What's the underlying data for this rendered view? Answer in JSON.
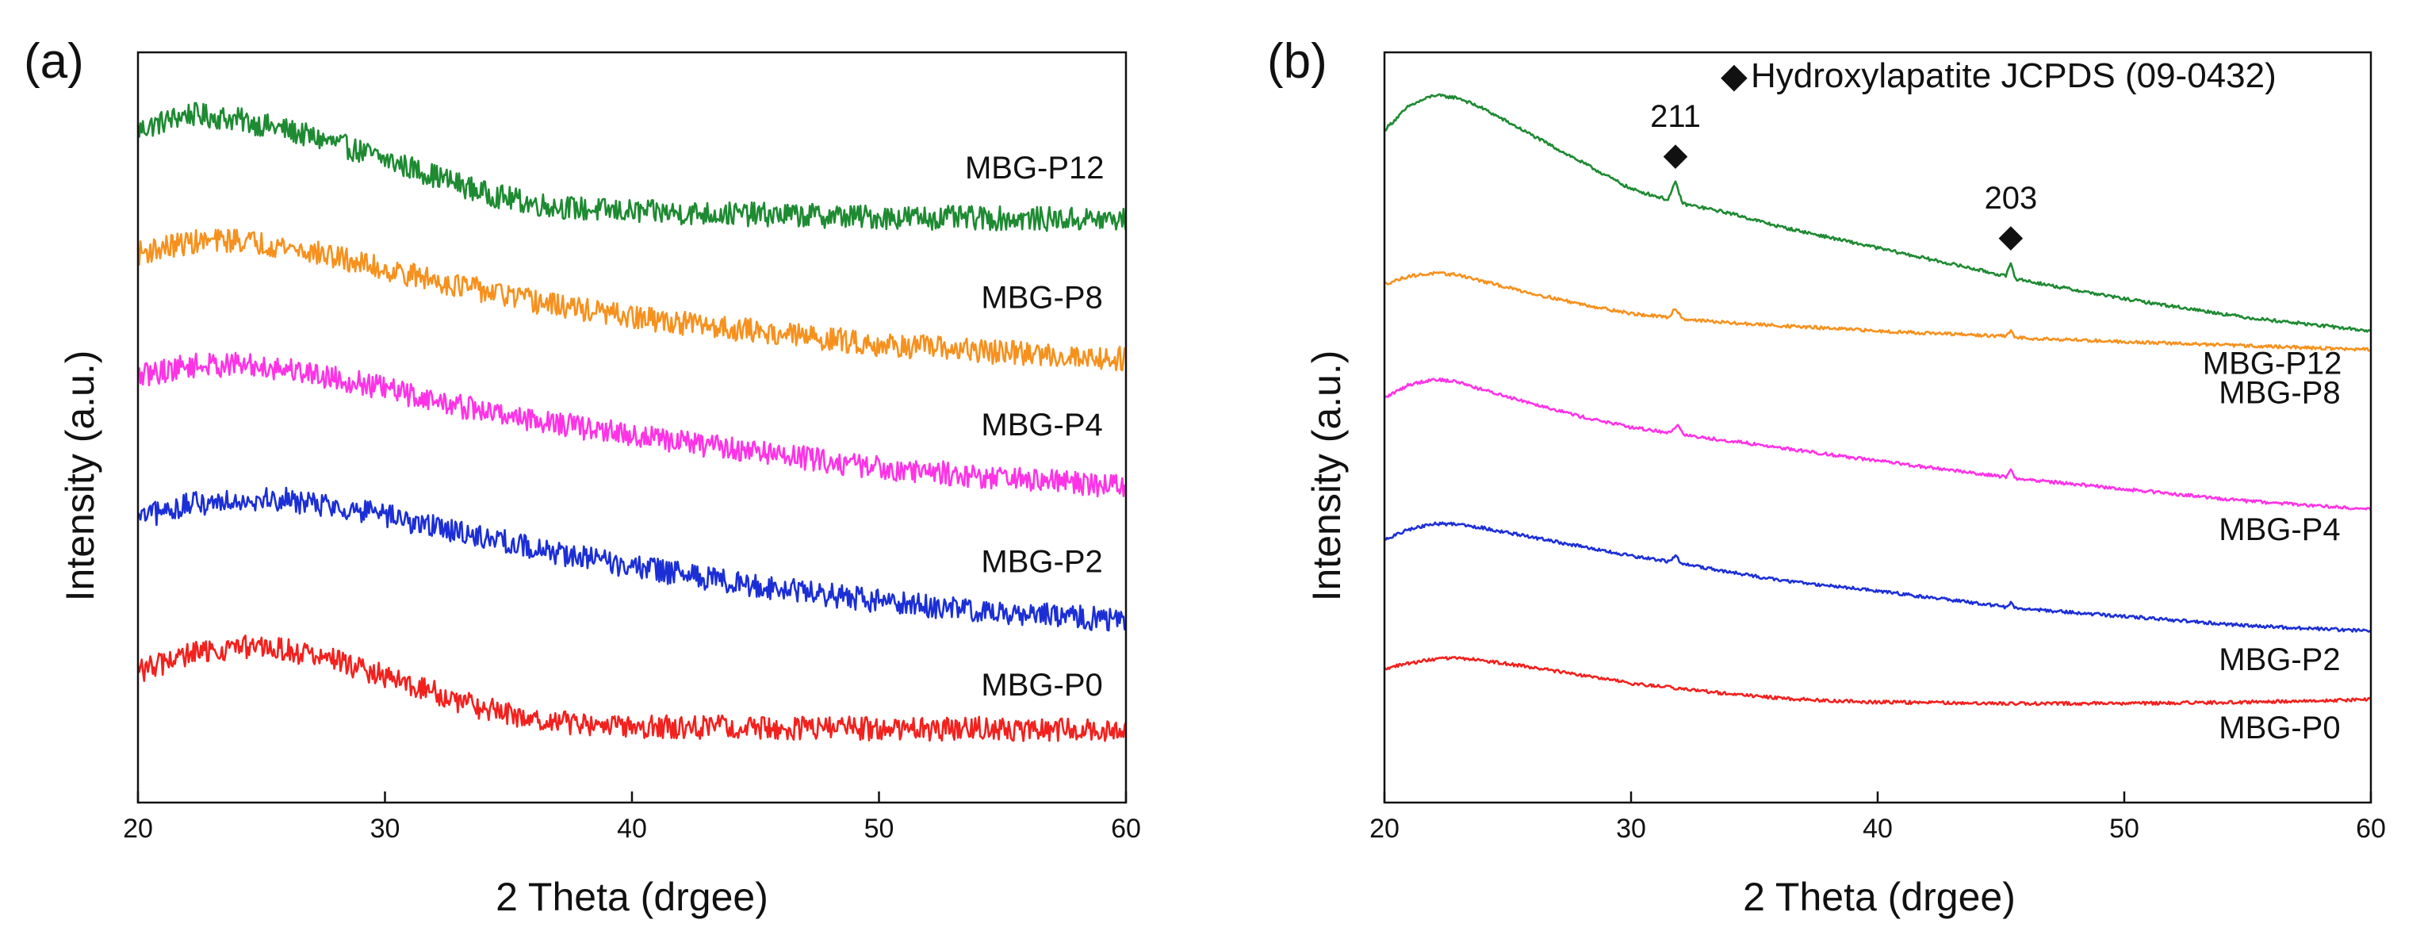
{
  "figure": {
    "background": "#ffffff"
  },
  "chart_data": [
    {
      "type": "line",
      "panel_label": "(a)",
      "title": "",
      "xlabel": "2 Theta (drgee)",
      "ylabel": "Intensity (a.u.)",
      "xlim": [
        20,
        60
      ],
      "ylim": [
        0,
        5.6
      ],
      "x_ticks": [
        20,
        30,
        40,
        50,
        60
      ],
      "x_tick_labels": [
        "20",
        "30",
        "40",
        "50",
        "60"
      ],
      "y_ticks_visible": false,
      "grid": false,
      "legend": "none",
      "noise": 0.09,
      "series": [
        {
          "name": "MBG-P12",
          "color": "#1e8a32",
          "x": [
            20,
            22,
            24,
            26,
            28,
            30,
            32,
            34,
            36,
            38,
            40,
            45,
            50,
            55,
            60
          ],
          "y": [
            5.02,
            5.14,
            5.1,
            5.02,
            4.92,
            4.8,
            4.68,
            4.55,
            4.47,
            4.43,
            4.41,
            4.39,
            4.37,
            4.36,
            4.35
          ]
        },
        {
          "name": "MBG-P8",
          "color": "#f6911e",
          "x": [
            20,
            22,
            24,
            26,
            28,
            30,
            32,
            34,
            36,
            38,
            40,
            45,
            50,
            55,
            60
          ],
          "y": [
            4.1,
            4.18,
            4.2,
            4.15,
            4.07,
            3.98,
            3.9,
            3.82,
            3.74,
            3.68,
            3.62,
            3.52,
            3.42,
            3.36,
            3.31
          ]
        },
        {
          "name": "MBG-P4",
          "color": "#ff33e6",
          "x": [
            20,
            22,
            24,
            26,
            28,
            30,
            32,
            34,
            36,
            38,
            40,
            45,
            50,
            55,
            60
          ],
          "y": [
            3.18,
            3.26,
            3.27,
            3.24,
            3.17,
            3.09,
            3.0,
            2.92,
            2.86,
            2.8,
            2.74,
            2.62,
            2.5,
            2.42,
            2.36
          ]
        },
        {
          "name": "MBG-P2",
          "color": "#1c2fd6",
          "x": [
            20,
            22,
            24,
            26,
            28,
            30,
            32,
            34,
            36,
            38,
            40,
            45,
            50,
            55,
            60
          ],
          "y": [
            2.12,
            2.22,
            2.27,
            2.26,
            2.21,
            2.14,
            2.06,
            1.98,
            1.9,
            1.83,
            1.76,
            1.62,
            1.5,
            1.42,
            1.36
          ]
        },
        {
          "name": "MBG-P0",
          "color": "#f2211e",
          "x": [
            20,
            22,
            24,
            26,
            28,
            30,
            32,
            34,
            36,
            38,
            40,
            45,
            50,
            55,
            60
          ],
          "y": [
            0.98,
            1.1,
            1.16,
            1.14,
            1.06,
            0.94,
            0.82,
            0.7,
            0.62,
            0.58,
            0.57,
            0.56,
            0.55,
            0.55,
            0.54
          ]
        }
      ],
      "series_labels": [
        {
          "text": "MBG-P12",
          "x": 56.3,
          "y": 4.66
        },
        {
          "text": "MBG-P8",
          "x": 56.6,
          "y": 3.69
        },
        {
          "text": "MBG-P4",
          "x": 56.6,
          "y": 2.74
        },
        {
          "text": "MBG-P2",
          "x": 56.6,
          "y": 1.72
        },
        {
          "text": "MBG-P0",
          "x": 56.6,
          "y": 0.8
        }
      ]
    },
    {
      "type": "line",
      "panel_label": "(b)",
      "title": "",
      "xlabel": "2 Theta (drgee)",
      "ylabel": "Intensity (a.u.)",
      "xlim": [
        20,
        60
      ],
      "ylim": [
        0,
        5.6
      ],
      "x_ticks": [
        20,
        30,
        40,
        50,
        60
      ],
      "x_tick_labels": [
        "20",
        "30",
        "40",
        "50",
        "60"
      ],
      "y_ticks_visible": false,
      "grid": false,
      "legend": "top-right",
      "noise": 0.012,
      "legend_entry": {
        "symbol": "◆",
        "text": "Hydroxylapatite JCPDS (09-0432)"
      },
      "series": [
        {
          "name": "MBG-P12",
          "color": "#1e8a32",
          "x": [
            20,
            21,
            22,
            23,
            24,
            25,
            26,
            28,
            30,
            31.5,
            31.8,
            32.1,
            34,
            36,
            38,
            40,
            42,
            44,
            45.2,
            45.4,
            45.6,
            47,
            50,
            55,
            60
          ],
          "y": [
            5.02,
            5.2,
            5.28,
            5.26,
            5.18,
            5.08,
            4.98,
            4.78,
            4.58,
            4.5,
            4.63,
            4.47,
            4.4,
            4.3,
            4.22,
            4.14,
            4.06,
            3.98,
            3.93,
            4.02,
            3.91,
            3.86,
            3.76,
            3.62,
            3.52
          ]
        },
        {
          "name": "MBG-P8",
          "color": "#f6911e",
          "x": [
            20,
            21,
            22,
            23,
            24,
            26,
            28,
            30,
            31.5,
            31.8,
            32.1,
            34,
            36,
            40,
            45.2,
            45.4,
            45.6,
            50,
            55,
            60
          ],
          "y": [
            3.87,
            3.93,
            3.95,
            3.94,
            3.89,
            3.8,
            3.72,
            3.65,
            3.62,
            3.69,
            3.61,
            3.58,
            3.56,
            3.52,
            3.48,
            3.52,
            3.47,
            3.44,
            3.41,
            3.38
          ]
        },
        {
          "name": "MBG-P4",
          "color": "#ff33e6",
          "x": [
            20,
            21,
            22,
            23,
            24,
            26,
            28,
            30,
            31.6,
            31.9,
            32.2,
            34,
            36,
            40,
            45.2,
            45.4,
            45.6,
            50,
            55,
            60
          ],
          "y": [
            3.02,
            3.12,
            3.16,
            3.14,
            3.08,
            2.98,
            2.88,
            2.8,
            2.76,
            2.82,
            2.74,
            2.7,
            2.65,
            2.55,
            2.43,
            2.48,
            2.42,
            2.34,
            2.25,
            2.19
          ]
        },
        {
          "name": "MBG-P2",
          "color": "#1c2fd6",
          "x": [
            20,
            21,
            22,
            23,
            24,
            26,
            28,
            30,
            31.5,
            31.8,
            32.1,
            34,
            36,
            40,
            45.2,
            45.4,
            45.6,
            50,
            55,
            60
          ],
          "y": [
            1.96,
            2.04,
            2.08,
            2.08,
            2.05,
            1.98,
            1.91,
            1.84,
            1.8,
            1.84,
            1.78,
            1.72,
            1.66,
            1.58,
            1.46,
            1.49,
            1.45,
            1.39,
            1.32,
            1.28
          ]
        },
        {
          "name": "MBG-P0",
          "color": "#f2211e",
          "x": [
            20,
            21,
            22,
            23,
            24,
            26,
            28,
            30,
            32,
            34,
            36,
            38,
            40,
            45,
            50,
            55,
            60
          ],
          "y": [
            1.0,
            1.04,
            1.07,
            1.08,
            1.06,
            1.01,
            0.95,
            0.89,
            0.85,
            0.81,
            0.78,
            0.76,
            0.75,
            0.74,
            0.74,
            0.75,
            0.77
          ]
        }
      ],
      "series_labels": [
        {
          "text": "MBG-P12",
          "x": 56.0,
          "y": 3.2
        },
        {
          "text": "MBG-P8",
          "x": 56.3,
          "y": 2.98
        },
        {
          "text": "MBG-P4",
          "x": 56.3,
          "y": 1.96
        },
        {
          "text": "MBG-P2",
          "x": 56.3,
          "y": 0.99
        },
        {
          "text": "MBG-P0",
          "x": 56.3,
          "y": 0.48
        }
      ],
      "annotations": [
        {
          "text": "211",
          "x": 31.8,
          "y": 4.63,
          "symbol": "◆"
        },
        {
          "text": "203",
          "x": 45.4,
          "y": 4.02,
          "symbol": "◆"
        }
      ]
    }
  ]
}
